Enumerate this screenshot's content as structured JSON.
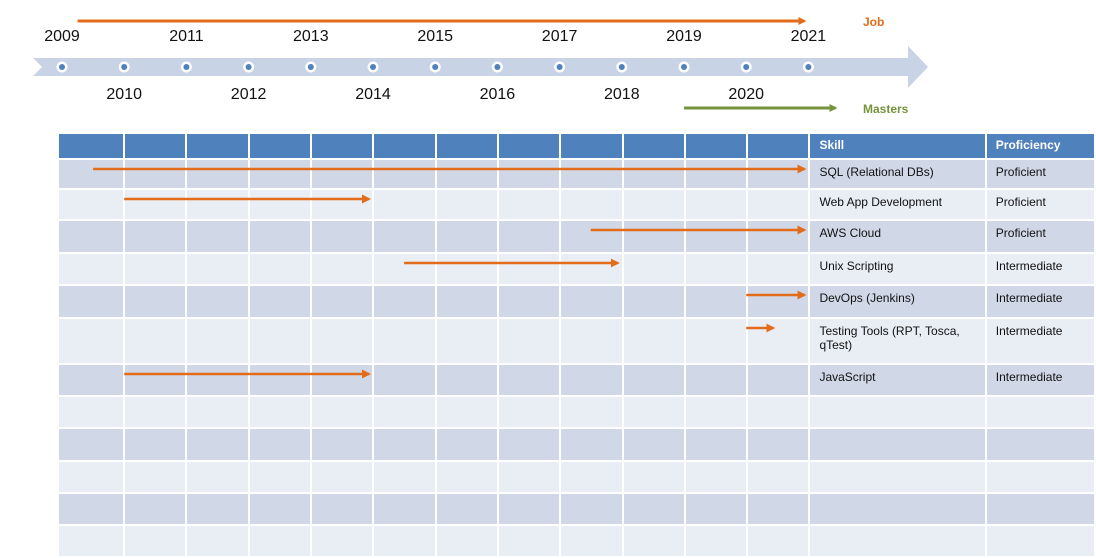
{
  "timeline": {
    "years_top": [
      "2009",
      "2011",
      "2013",
      "2015",
      "2017",
      "2019",
      "2021"
    ],
    "years_bottom": [
      "2010",
      "2012",
      "2014",
      "2016",
      "2018",
      "2020"
    ],
    "legend": [
      {
        "label": "Job",
        "color": "#e36c1a",
        "from": 2009.25,
        "to": 2021
      },
      {
        "label": "Masters",
        "color": "#77933c",
        "from": 2019,
        "to": 2021.5
      }
    ]
  },
  "table": {
    "headers": {
      "skill": "Skill",
      "proficiency": "Proficiency"
    },
    "rows": [
      {
        "skill": "SQL (Relational DBs)",
        "proficiency": "Proficient",
        "from": 2009.5,
        "to": 2021
      },
      {
        "skill": "Web App Development",
        "proficiency": "Proficient",
        "from": 2010,
        "to": 2014
      },
      {
        "skill": "AWS Cloud",
        "proficiency": "Proficient",
        "from": 2017.5,
        "to": 2021
      },
      {
        "skill": "Unix Scripting",
        "proficiency": "Intermediate",
        "from": 2014.5,
        "to": 2018
      },
      {
        "skill": "DevOps (Jenkins)",
        "proficiency": "Intermediate",
        "from": 2020,
        "to": 2021
      },
      {
        "skill": "Testing Tools (RPT, Tosca, qTest)",
        "proficiency": "Intermediate",
        "from": 2020,
        "to": 2020.5
      },
      {
        "skill": "JavaScript",
        "proficiency": "Intermediate",
        "from": 2010,
        "to": 2014
      },
      {
        "skill": "",
        "proficiency": ""
      },
      {
        "skill": "",
        "proficiency": ""
      },
      {
        "skill": "",
        "proficiency": ""
      },
      {
        "skill": "",
        "proficiency": ""
      },
      {
        "skill": "",
        "proficiency": ""
      }
    ]
  },
  "colors": {
    "job": "#e36c1a",
    "masters": "#77933c",
    "timeline_band": "#c9d3e6",
    "header": "#4f81bd"
  }
}
